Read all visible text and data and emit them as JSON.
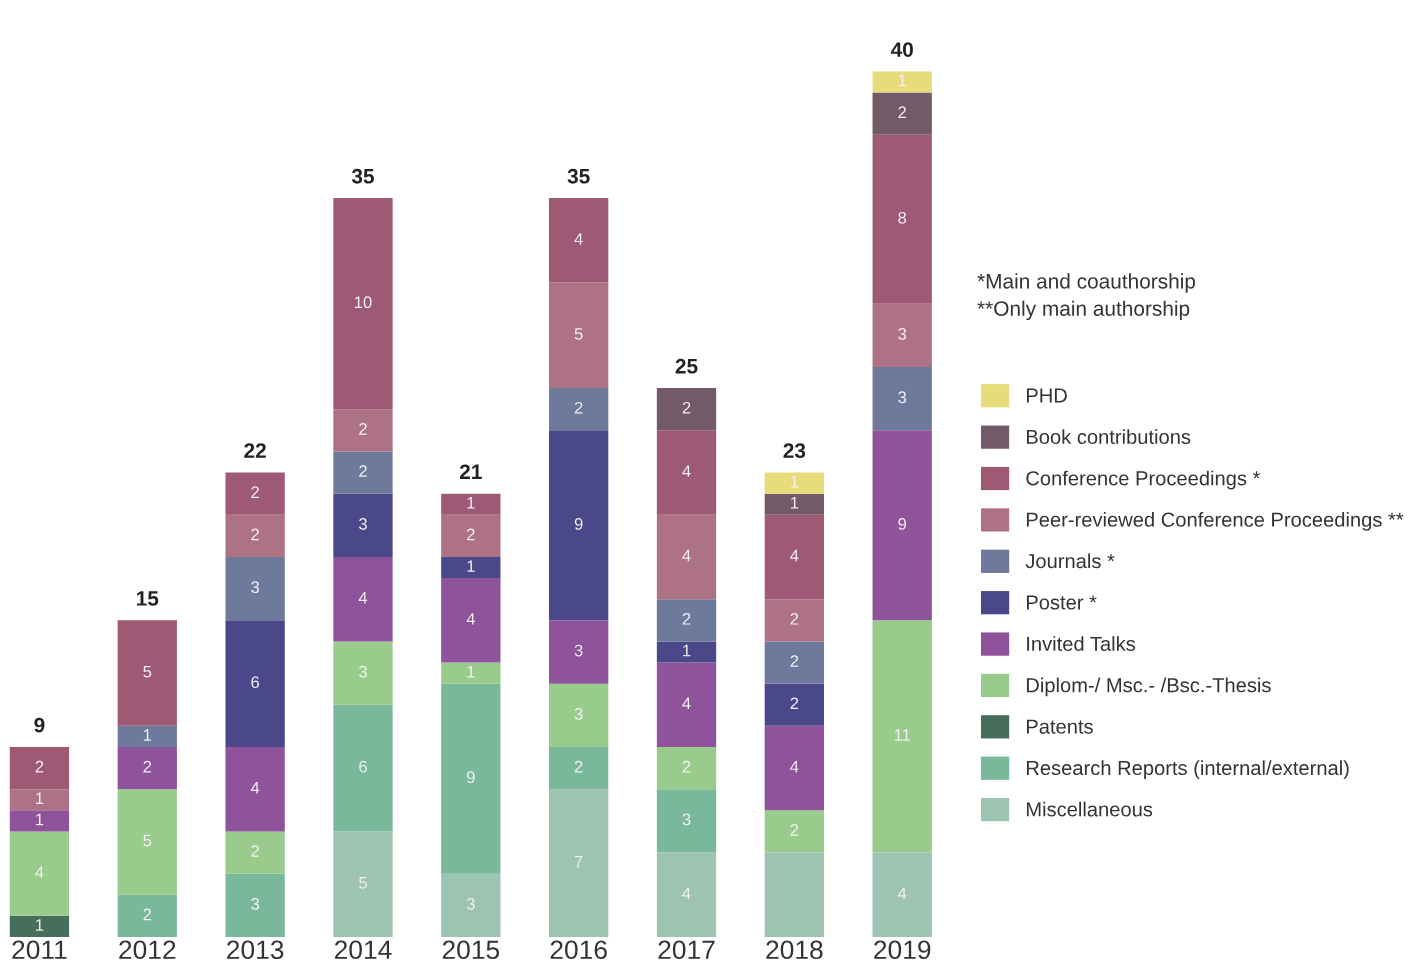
{
  "chart_data": {
    "type": "bar",
    "stacked": true,
    "categories": [
      "2011",
      "2012",
      "2013",
      "2014",
      "2015",
      "2016",
      "2017",
      "2018",
      "2019"
    ],
    "series": [
      {
        "name": "Miscellaneous",
        "color": "#9cc4b0",
        "values": [
          null,
          null,
          null,
          5,
          3,
          7,
          4,
          4,
          4
        ],
        "value_labels": [
          null,
          null,
          null,
          "5",
          "3",
          "7",
          "4",
          null,
          "4"
        ]
      },
      {
        "name": "Research Reports (internal/external)",
        "color": "#7ab89c",
        "values": [
          null,
          2,
          3,
          6,
          9,
          2,
          3,
          null,
          null
        ],
        "value_labels": [
          null,
          "2",
          "3",
          "6",
          "9",
          "2",
          "3",
          null,
          null
        ]
      },
      {
        "name": "Patents",
        "color": "#466e5a",
        "values": [
          1,
          null,
          null,
          null,
          null,
          null,
          null,
          null,
          null
        ],
        "value_labels": [
          "1",
          null,
          null,
          null,
          null,
          null,
          null,
          null,
          null
        ]
      },
      {
        "name": "Diplom-/ Msc.- /Bsc.-Thesis",
        "color": "#99cc8c",
        "values": [
          4,
          5,
          2,
          3,
          1,
          3,
          2,
          2,
          11
        ],
        "value_labels": [
          "4",
          "5",
          "2",
          "3",
          "1",
          "3",
          "2",
          "2",
          "11"
        ]
      },
      {
        "name": "Invited Talks",
        "color": "#8f539c",
        "values": [
          1,
          2,
          4,
          4,
          4,
          3,
          4,
          4,
          9
        ],
        "value_labels": [
          "1",
          "2",
          "4",
          "4",
          "4",
          "3",
          "4",
          "4",
          "9"
        ]
      },
      {
        "name": "Poster *",
        "color": "#4a4888",
        "values": [
          null,
          null,
          6,
          3,
          1,
          9,
          1,
          2,
          null
        ],
        "value_labels": [
          null,
          null,
          "6",
          "3",
          "1",
          "9",
          "1",
          "2",
          null
        ]
      },
      {
        "name": "Journals *",
        "color": "#6e7a9c",
        "values": [
          null,
          1,
          3,
          2,
          null,
          2,
          2,
          2,
          3
        ],
        "value_labels": [
          null,
          "1",
          "3",
          "2",
          null,
          "2",
          "2",
          "2",
          "3"
        ]
      },
      {
        "name": "Peer-reviewed Conference Proceedings **",
        "color": "#ad7384",
        "values": [
          1,
          null,
          2,
          2,
          2,
          5,
          4,
          2,
          3
        ],
        "value_labels": [
          "1",
          null,
          "2",
          "2",
          "2",
          "5",
          "4",
          "2",
          "3"
        ]
      },
      {
        "name": "Conference Proceedings *",
        "color": "#9e5a74",
        "values": [
          2,
          5,
          2,
          10,
          1,
          4,
          4,
          4,
          8
        ],
        "value_labels": [
          "2",
          "5",
          "2",
          "10",
          "1",
          "4",
          "4",
          "4",
          "8"
        ]
      },
      {
        "name": "Book contributions",
        "color": "#735a68",
        "values": [
          null,
          null,
          null,
          null,
          null,
          null,
          2,
          1,
          2
        ],
        "value_labels": [
          null,
          null,
          null,
          null,
          null,
          null,
          "2",
          "1",
          "2"
        ]
      },
      {
        "name": "PHD",
        "color": "#e8dc7a",
        "values": [
          null,
          null,
          null,
          null,
          null,
          null,
          null,
          1,
          1
        ],
        "value_labels": [
          null,
          null,
          null,
          null,
          null,
          null,
          null,
          "1",
          "1"
        ]
      }
    ],
    "totals": [
      "9",
      "15",
      "22",
      "35",
      "21",
      "35",
      "25",
      "23",
      "40"
    ],
    "legend": "right",
    "annotations": [
      "*Main and coauthorship",
      "**Only main authorship"
    ]
  }
}
